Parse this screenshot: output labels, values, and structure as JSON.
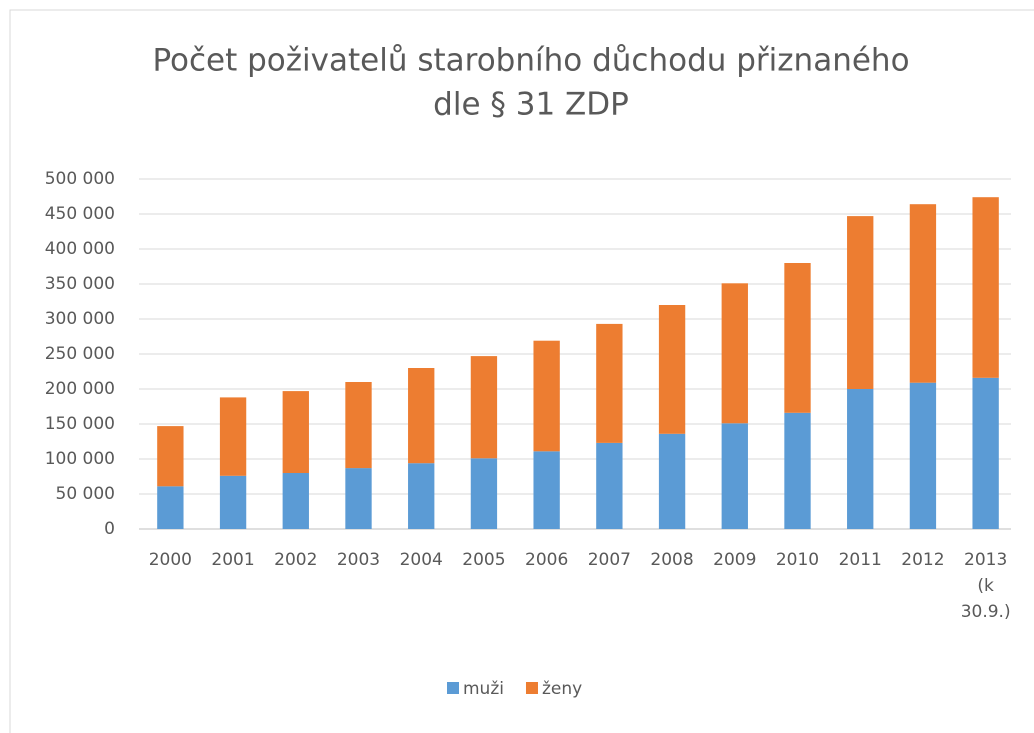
{
  "chart_data": {
    "type": "stacked_bar",
    "title": [
      "Počet poživatelů starobního důchodu přiznaného",
      "dle § 31 ZDP"
    ],
    "categories": [
      "2000",
      "2001",
      "2002",
      "2003",
      "2004",
      "2005",
      "2006",
      "2007",
      "2008",
      "2009",
      "2010",
      "2011",
      "2012",
      "2013 (k 30.9.)"
    ],
    "series": [
      {
        "name": "muži",
        "color": "#5b9bd5",
        "values": [
          61000,
          76000,
          80000,
          87000,
          94000,
          101000,
          111000,
          123000,
          136000,
          151000,
          166000,
          200000,
          209000,
          216000
        ]
      },
      {
        "name": "ženy",
        "color": "#ed7d31",
        "values": [
          86000,
          112000,
          117000,
          123000,
          136000,
          146000,
          158000,
          170000,
          184000,
          200000,
          214000,
          247000,
          255000,
          258000
        ]
      }
    ],
    "ylim": [
      0,
      500000
    ],
    "yticks": [
      0,
      {
        "value": 50000,
        "label": "50 000"
      },
      {
        "value": 100000,
        "label": "100 000"
      },
      {
        "value": 150000,
        "label": "150 000"
      },
      {
        "value": 200000,
        "label": "200 000"
      },
      {
        "value": 250000,
        "label": "250 000"
      },
      {
        "value": 300000,
        "label": "300 000"
      },
      {
        "value": 350000,
        "label": "350 000"
      },
      {
        "value": 400000,
        "label": "400 000"
      },
      {
        "value": 450000,
        "label": "450 000"
      },
      {
        "value": 500000,
        "label": "500 000"
      }
    ],
    "grid": true,
    "legend": "bottom"
  }
}
